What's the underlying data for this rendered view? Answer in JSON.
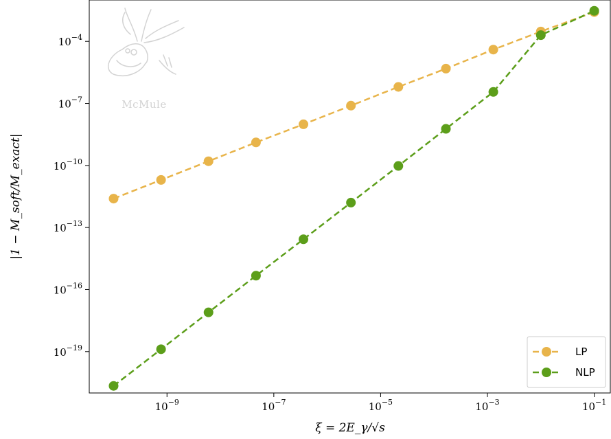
{
  "chart_data": {
    "type": "line",
    "xlabel": "ξ = 2E_γ/√s",
    "ylabel": "|1 − M_soft/M_exact|",
    "x_scale": "log",
    "y_scale": "log",
    "xlim": [
      3.5e-11,
      0.2
    ],
    "ylim": [
      1e-21,
      0.01
    ],
    "xticks": [
      {
        "value": 1e-09,
        "base": "10",
        "exp": "−9"
      },
      {
        "value": 1e-07,
        "base": "10",
        "exp": "−7"
      },
      {
        "value": 1e-05,
        "base": "10",
        "exp": "−5"
      },
      {
        "value": 0.001,
        "base": "10",
        "exp": "−3"
      },
      {
        "value": 0.1,
        "base": "10",
        "exp": "−1"
      }
    ],
    "yticks": [
      {
        "value": 0.0001,
        "base": "10",
        "exp": "−4"
      },
      {
        "value": 1e-07,
        "base": "10",
        "exp": "−7"
      },
      {
        "value": 1e-10,
        "base": "10",
        "exp": "−10"
      },
      {
        "value": 1e-13,
        "base": "10",
        "exp": "−13"
      },
      {
        "value": 1e-16,
        "base": "10",
        "exp": "−16"
      },
      {
        "value": 1e-19,
        "base": "10",
        "exp": "−19"
      }
    ],
    "x": [
      1e-10,
      7.74e-10,
      5.99e-09,
      4.64e-08,
      3.59e-07,
      2.78e-06,
      2.15e-05,
      0.000167,
      0.00129,
      0.01,
      0.1
    ],
    "series": [
      {
        "name": "LP",
        "color": "#e8b44a",
        "values": [
          2.5e-12,
          2e-11,
          1.6e-10,
          1.3e-09,
          9.8e-09,
          7.8e-08,
          6.3e-07,
          4.8e-06,
          4e-05,
          0.0003,
          0.0026
        ]
      },
      {
        "name": "NLP",
        "color": "#5c9e1a",
        "values": [
          2.2e-21,
          1.3e-19,
          7.9e-18,
          4.7e-16,
          2.7e-14,
          1.6e-12,
          9.5e-11,
          5.9e-09,
          3.6e-07,
          0.0002,
          0.003
        ]
      }
    ],
    "grid": false,
    "legend_position": "bottom-right"
  },
  "logo": {
    "text": "McMule"
  }
}
